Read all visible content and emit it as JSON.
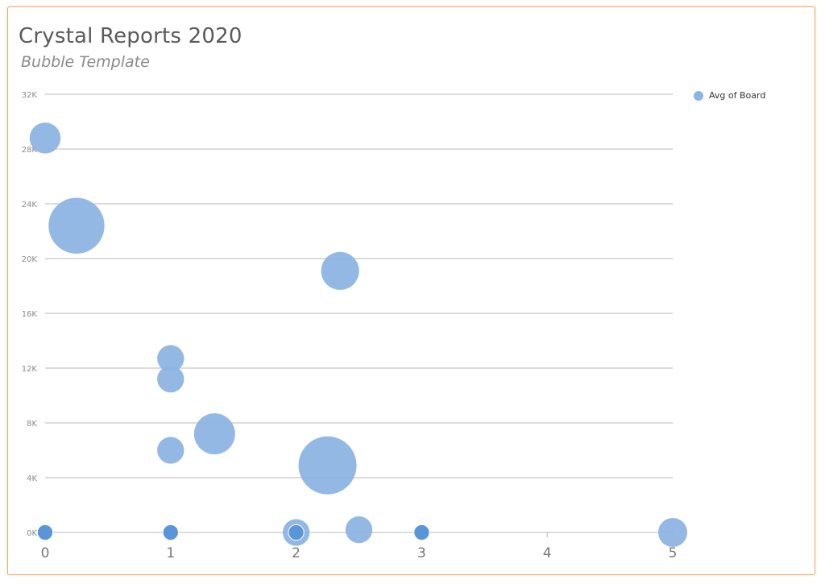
{
  "title": "Crystal Reports 2020",
  "subtitle": "Bubble Template",
  "colors": {
    "bubble": "#8eb4e3",
    "bubble_dark": "#5b95d9",
    "grid": "#b8b8b8",
    "frame": "#f0a765"
  },
  "chart_data": {
    "type": "scatter",
    "bubble": true,
    "title": "Crystal Reports 2020",
    "subtitle": "Bubble Template",
    "xlabel": "",
    "ylabel": "",
    "xlim": [
      0,
      5
    ],
    "ylim": [
      0,
      32000
    ],
    "x_ticks": [
      "0",
      "1",
      "2",
      "3",
      "4",
      "5"
    ],
    "y_ticks": [
      "0K",
      "4K",
      "8K",
      "12K",
      "16K",
      "20K",
      "24K",
      "28K",
      "32K"
    ],
    "grid": true,
    "legend_position": "top-right",
    "series": [
      {
        "name": "Avg of Board",
        "points": [
          {
            "x": 0,
            "y": 28800,
            "size": 4
          },
          {
            "x": 0.25,
            "y": 22400,
            "size": 13
          },
          {
            "x": 2.35,
            "y": 19100,
            "size": 6
          },
          {
            "x": 1,
            "y": 12700,
            "size": 3
          },
          {
            "x": 1,
            "y": 11200,
            "size": 3
          },
          {
            "x": 1,
            "y": 6000,
            "size": 3
          },
          {
            "x": 1.35,
            "y": 7200,
            "size": 7
          },
          {
            "x": 2.25,
            "y": 4900,
            "size": 14
          },
          {
            "x": 2.5,
            "y": 200,
            "size": 3
          },
          {
            "x": 2,
            "y": 0,
            "size": 3
          },
          {
            "x": 5,
            "y": 0,
            "size": 3.5
          },
          {
            "x": 0,
            "y": 0,
            "size": 1
          },
          {
            "x": 1,
            "y": 0,
            "size": 1
          },
          {
            "x": 2,
            "y": 0,
            "size": 1
          },
          {
            "x": 3,
            "y": 0,
            "size": 1
          }
        ]
      }
    ]
  }
}
